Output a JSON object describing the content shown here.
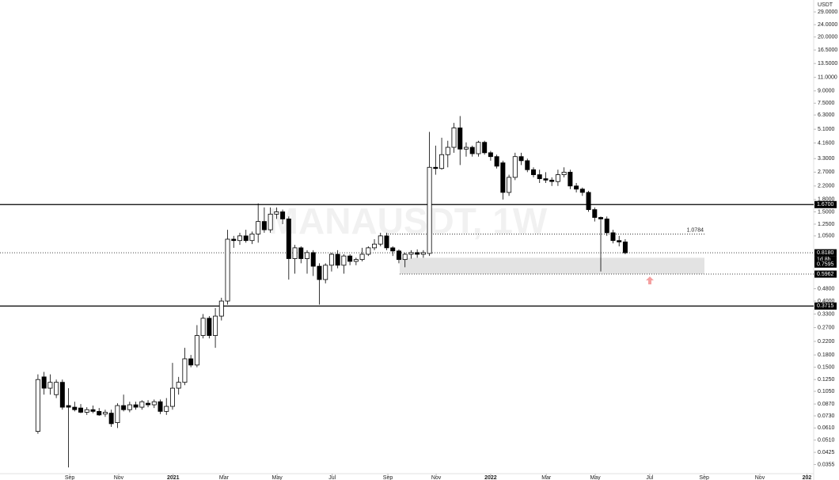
{
  "chart_data": {
    "type": "candlestick",
    "watermark": "MANAUSDT, 1W",
    "y_unit": "USDT",
    "log_scale": true,
    "up_color": "#ffffff",
    "down_color": "#000000",
    "ylim": [
      0.031,
      34.6
    ],
    "xlim": [
      -6.2,
      126.8
    ],
    "yticks": [
      {
        "value": 29,
        "label": "29.0000"
      },
      {
        "value": 24,
        "label": "24.0000"
      },
      {
        "value": 20,
        "label": "20.0000"
      },
      {
        "value": 16.5,
        "label": "16.5000"
      },
      {
        "value": 13.5,
        "label": "13.5000"
      },
      {
        "value": 11,
        "label": "11.0000"
      },
      {
        "value": 9,
        "label": "9.0000"
      },
      {
        "value": 7.5,
        "label": "7.5000"
      },
      {
        "value": 6.3,
        "label": "6.3000"
      },
      {
        "value": 5.1,
        "label": "5.1000"
      },
      {
        "value": 4.16,
        "label": "4.1600"
      },
      {
        "value": 3.3,
        "label": "3.3000"
      },
      {
        "value": 2.7,
        "label": "2.7000"
      },
      {
        "value": 2.2,
        "label": "2.2000"
      },
      {
        "value": 1.8,
        "label": "1.8000"
      },
      {
        "value": 1.5,
        "label": "1.5000"
      },
      {
        "value": 1.25,
        "label": "1.2500"
      },
      {
        "value": 1.05,
        "label": "1.0500"
      },
      {
        "value": 0.48,
        "label": "0.4800"
      },
      {
        "value": 0.4,
        "label": "0.4000"
      },
      {
        "value": 0.33,
        "label": "0.3300"
      },
      {
        "value": 0.27,
        "label": "0.2700"
      },
      {
        "value": 0.22,
        "label": "0.2200"
      },
      {
        "value": 0.18,
        "label": "0.1800"
      },
      {
        "value": 0.15,
        "label": "0.1500"
      },
      {
        "value": 0.125,
        "label": "0.1250"
      },
      {
        "value": 0.105,
        "label": "0.1050"
      },
      {
        "value": 0.087,
        "label": "0.0870"
      },
      {
        "value": 0.073,
        "label": "0.0730"
      },
      {
        "value": 0.061,
        "label": "0.0610"
      },
      {
        "value": 0.051,
        "label": "0.0510"
      },
      {
        "value": 0.0425,
        "label": "0.0425"
      },
      {
        "value": 0.0355,
        "label": "0.0355"
      }
    ],
    "xticks": [
      {
        "value": 5.2,
        "label": "Sep"
      },
      {
        "value": 13.2,
        "label": "Nov"
      },
      {
        "value": 22.1,
        "label": "2021"
      },
      {
        "value": 30.4,
        "label": "Mar"
      },
      {
        "value": 39.1,
        "label": "May"
      },
      {
        "value": 48.1,
        "label": "Jul"
      },
      {
        "value": 57.2,
        "label": "Sep"
      },
      {
        "value": 65.1,
        "label": "Nov"
      },
      {
        "value": 74,
        "label": "2022"
      },
      {
        "value": 83.1,
        "label": "Mar"
      },
      {
        "value": 91.1,
        "label": "May"
      },
      {
        "value": 100,
        "label": "Jul"
      },
      {
        "value": 108.9,
        "label": "Sep"
      },
      {
        "value": 118,
        "label": "Nov"
      },
      {
        "value": 125.7,
        "label": "202"
      }
    ],
    "levels": [
      {
        "value": 1.67,
        "label": "1.6700",
        "style": "solid"
      },
      {
        "value": 0.3715,
        "label": "0.3715",
        "style": "solid"
      },
      {
        "value": 0.818,
        "label": "0.8180",
        "style": "dotted"
      },
      {
        "value": 0.5962,
        "label": "0.5962",
        "style": "dotted"
      },
      {
        "value": 0.7595,
        "label": "0.7595",
        "style": "none"
      }
    ],
    "countdown": "1d 8h",
    "resistance": {
      "value": 1.0784,
      "label": "1.0784"
    },
    "zone": {
      "top": 0.7595,
      "bottom": 0.5962
    },
    "open": [
      0.058,
      0.13,
      0.11,
      0.1,
      0.12,
      0.085,
      0.083,
      0.082,
      0.077,
      0.08,
      0.078,
      0.075,
      0.076,
      0.066,
      0.085,
      0.08,
      0.086,
      0.083,
      0.088,
      0.086,
      0.09,
      0.078,
      0.084,
      0.11,
      0.12,
      0.17,
      0.155,
      0.24,
      0.31,
      0.24,
      0.32,
      0.4,
      1.0,
      0.98,
      1.05,
      0.98,
      1.08,
      1.3,
      1.15,
      1.45,
      1.5,
      1.35,
      0.75,
      0.88,
      0.75,
      0.82,
      0.67,
      0.55,
      0.68,
      0.8,
      0.68,
      0.78,
      0.72,
      0.74,
      0.8,
      0.88,
      0.93,
      1.05,
      0.88,
      0.84,
      0.74,
      0.8,
      0.82,
      0.8,
      0.81,
      2.9,
      2.85,
      3.5,
      3.9,
      5.2,
      3.8,
      3.9,
      3.55,
      4.2,
      3.6,
      3.4,
      3.1,
      2.0,
      2.5,
      3.4,
      3.2,
      2.8,
      2.6,
      2.45,
      2.4,
      2.35,
      2.6,
      2.7,
      2.2,
      2.1,
      2.0,
      1.55,
      1.38,
      1.35,
      1.1,
      0.98,
      0.96
    ],
    "high": [
      0.135,
      0.14,
      0.135,
      0.125,
      0.125,
      0.11,
      0.09,
      0.087,
      0.083,
      0.085,
      0.082,
      0.08,
      0.08,
      0.088,
      0.1,
      0.09,
      0.09,
      0.092,
      0.092,
      0.093,
      0.093,
      0.095,
      0.16,
      0.13,
      0.2,
      0.18,
      0.28,
      0.33,
      0.32,
      0.36,
      0.42,
      1.15,
      1.05,
      1.1,
      1.15,
      1.12,
      1.7,
      1.6,
      1.6,
      1.6,
      1.55,
      1.4,
      0.92,
      0.9,
      0.85,
      0.85,
      0.7,
      0.7,
      0.82,
      0.85,
      0.8,
      0.8,
      0.76,
      0.88,
      0.9,
      1.0,
      1.1,
      1.1,
      0.9,
      0.86,
      0.82,
      0.85,
      0.86,
      0.85,
      4.9,
      4.0,
      4.5,
      4.3,
      5.6,
      6.2,
      4.2,
      4.0,
      4.3,
      4.3,
      3.7,
      3.5,
      3.2,
      2.6,
      3.6,
      3.6,
      3.3,
      2.9,
      2.8,
      2.7,
      2.5,
      2.8,
      2.9,
      2.8,
      2.3,
      2.15,
      2.05,
      1.6,
      1.4,
      1.4,
      1.15,
      1.05,
      1.0
    ],
    "low": [
      0.056,
      0.1,
      0.1,
      0.095,
      0.08,
      0.034,
      0.078,
      0.076,
      0.074,
      0.076,
      0.073,
      0.072,
      0.062,
      0.061,
      0.078,
      0.077,
      0.08,
      0.08,
      0.083,
      0.082,
      0.075,
      0.074,
      0.08,
      0.1,
      0.115,
      0.15,
      0.15,
      0.23,
      0.23,
      0.2,
      0.3,
      0.38,
      0.88,
      0.92,
      0.95,
      0.93,
      0.95,
      1.1,
      1.1,
      1.35,
      1.25,
      0.55,
      0.6,
      0.7,
      0.6,
      0.58,
      0.38,
      0.52,
      0.62,
      0.65,
      0.6,
      0.68,
      0.68,
      0.72,
      0.78,
      0.85,
      0.9,
      0.85,
      0.78,
      0.7,
      0.66,
      0.75,
      0.76,
      0.76,
      0.78,
      2.6,
      2.8,
      2.9,
      3.6,
      3.0,
      3.4,
      3.4,
      3.4,
      3.5,
      3.2,
      2.85,
      1.8,
      1.9,
      2.4,
      3.0,
      2.7,
      2.5,
      2.3,
      2.3,
      2.2,
      2.2,
      2.5,
      2.1,
      2.0,
      1.9,
      1.5,
      1.3,
      0.62,
      1.05,
      0.94,
      0.9,
      0.8
    ],
    "close": [
      0.125,
      0.11,
      0.12,
      0.12,
      0.083,
      0.083,
      0.08,
      0.077,
      0.08,
      0.078,
      0.074,
      0.077,
      0.065,
      0.085,
      0.08,
      0.086,
      0.083,
      0.09,
      0.086,
      0.09,
      0.078,
      0.084,
      0.11,
      0.12,
      0.17,
      0.155,
      0.24,
      0.31,
      0.24,
      0.32,
      0.4,
      1.0,
      0.98,
      1.05,
      0.98,
      1.08,
      1.3,
      1.15,
      1.45,
      1.5,
      1.35,
      0.75,
      0.88,
      0.75,
      0.82,
      0.67,
      0.55,
      0.68,
      0.8,
      0.68,
      0.78,
      0.72,
      0.74,
      0.8,
      0.88,
      0.93,
      1.05,
      0.88,
      0.84,
      0.74,
      0.8,
      0.82,
      0.8,
      0.82,
      2.9,
      2.85,
      3.5,
      3.9,
      5.2,
      3.8,
      3.9,
      3.55,
      4.2,
      3.6,
      3.4,
      2.95,
      2.0,
      2.5,
      3.4,
      3.2,
      2.8,
      2.6,
      2.45,
      2.4,
      2.35,
      2.6,
      2.7,
      2.2,
      2.1,
      2.0,
      1.55,
      1.38,
      1.35,
      1.1,
      0.98,
      0.96,
      0.818
    ]
  }
}
